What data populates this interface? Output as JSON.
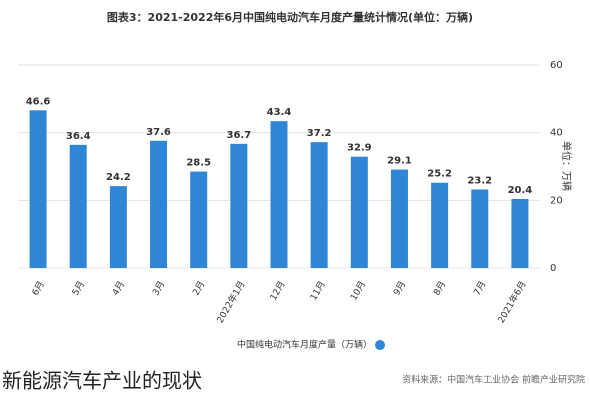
{
  "chart_data": {
    "type": "bar",
    "title": "图表3：2021-2022年6月中国纯电动汽车月度产量统计情况(单位：万辆)",
    "y_label": "单位：万辆",
    "categories": [
      "6月",
      "5月",
      "4月",
      "3月",
      "2月",
      "2022年1月",
      "12月",
      "11月",
      "10月",
      "9月",
      "8月",
      "7月",
      "2021年6月"
    ],
    "series": [
      {
        "name": "中国纯电动汽车月度产量（万辆）",
        "color": "#2f86d6",
        "values": [
          46.6,
          36.4,
          24.2,
          37.6,
          28.5,
          36.7,
          43.4,
          37.2,
          32.9,
          29.1,
          25.2,
          23.2,
          20.4
        ]
      }
    ],
    "ylim": [
      0,
      60
    ],
    "yticks": [
      0,
      20,
      40,
      60
    ],
    "grid": true,
    "y_axis_side": "right",
    "source": "资料来源：中国汽车工业协会 前瞻产业研究院",
    "caption": "新能源汽车产业的现状"
  }
}
